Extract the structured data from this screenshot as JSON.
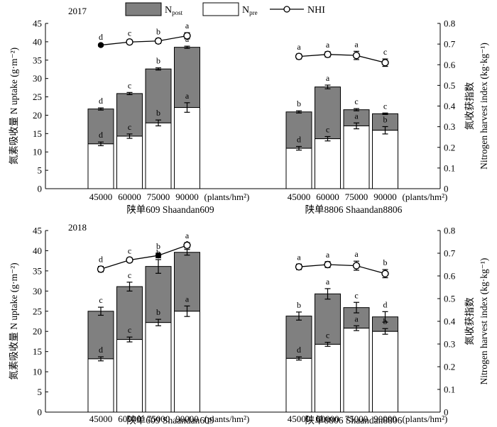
{
  "legend": {
    "npost_main": "N",
    "npost_sub": "post",
    "npre_main": "N",
    "npre_sub": "pre",
    "nhi": "NHI"
  },
  "colors": {
    "npost": "#808080",
    "npre": "#ffffff",
    "stroke": "#000000"
  },
  "chart_data": [
    {
      "type": "bar",
      "panel_label": "2017",
      "stacked": true,
      "ylabel_left_cn": "氮素吸收量",
      "ylabel_left_en": "N uptake",
      "ylabel_left_unit": "(g·m⁻²)",
      "ylabel_right_cn": "氮收获指数",
      "ylabel_right_en": "Nitrogen harvest index",
      "ylabel_right_unit": "(kg·kg⁻¹)",
      "ylim_left": [
        0,
        45
      ],
      "ylim_right": [
        0,
        0.8
      ],
      "yticks_left": [
        "0",
        "5",
        "10",
        "15",
        "20",
        "25",
        "30",
        "35",
        "40",
        "45"
      ],
      "yticks_right": [
        "0",
        "0.1",
        "0.2",
        "0.3",
        "0.4",
        "0.5",
        "0.6",
        "0.7",
        "0.8"
      ],
      "x_unit": "(plants/hm²)",
      "groups": [
        {
          "name": "陕单609 Shaandan609",
          "categories": [
            "45000",
            "60000",
            "75000",
            "90000"
          ],
          "npre": [
            12.2,
            14.3,
            17.9,
            22.1
          ],
          "npre_err": [
            0.5,
            0.6,
            0.8,
            1.3
          ],
          "npre_letters": [
            "d",
            "c",
            "b",
            "a"
          ],
          "total": [
            21.7,
            25.9,
            32.6,
            38.5
          ],
          "total_err": [
            0.3,
            0.3,
            0.3,
            0.3
          ],
          "total_letters": [
            "d",
            "c",
            "b",
            "a"
          ],
          "nhi": [
            0.695,
            0.71,
            0.715,
            0.74
          ],
          "nhi_err": [
            0.005,
            0.01,
            0.012,
            0.015
          ],
          "nhi_letters": [
            "d",
            "c",
            "b",
            "a"
          ],
          "nhi_marker": [
            "filled",
            "open",
            "open",
            "open"
          ]
        },
        {
          "name": "陕单8806 Shaandan8806",
          "categories": [
            "45000",
            "60000",
            "75000",
            "90000"
          ],
          "npre": [
            11.0,
            13.6,
            17.1,
            15.9
          ],
          "npre_err": [
            0.5,
            0.6,
            0.8,
            1.0
          ],
          "npre_letters": [
            "d",
            "c",
            "a",
            "b"
          ],
          "total": [
            20.9,
            27.7,
            21.5,
            20.4
          ],
          "total_err": [
            0.3,
            0.5,
            0.3,
            0.2
          ],
          "total_letters": [
            "b",
            "a",
            "c",
            "c"
          ],
          "nhi": [
            0.64,
            0.65,
            0.645,
            0.61
          ],
          "nhi_err": [
            0.012,
            0.013,
            0.02,
            0.018
          ],
          "nhi_letters": [
            "a",
            "a",
            "a",
            "c"
          ],
          "nhi_marker": [
            "open",
            "open",
            "open",
            "open"
          ]
        }
      ]
    },
    {
      "type": "bar",
      "panel_label": "2018",
      "stacked": true,
      "ylabel_left_cn": "氮素吸收量",
      "ylabel_left_en": "N uptake",
      "ylabel_left_unit": "(g·m⁻²)",
      "ylabel_right_cn": "氮收获指数",
      "ylabel_right_en": "Nitrogen harvest index",
      "ylabel_right_unit": "(kg·kg⁻¹)",
      "ylim_left": [
        0,
        45
      ],
      "ylim_right": [
        0,
        0.8
      ],
      "yticks_left": [
        "0",
        "5",
        "10",
        "15",
        "20",
        "25",
        "30",
        "35",
        "40",
        "45"
      ],
      "yticks_right": [
        "0",
        "0.1",
        "0.2",
        "0.3",
        "0.4",
        "0.5",
        "0.6",
        "0.7",
        "0.8"
      ],
      "x_unit": "(plants/hm²)",
      "groups": [
        {
          "name": "陕单609 Shaandan609",
          "categories": [
            "45000",
            "60000",
            "75000",
            "90000"
          ],
          "npre": [
            13.2,
            18.0,
            22.2,
            25.0
          ],
          "npre_err": [
            0.5,
            0.6,
            0.8,
            1.3
          ],
          "npre_letters": [
            "d",
            "c",
            "b",
            "a"
          ],
          "total": [
            25.0,
            31.1,
            36.1,
            39.6
          ],
          "total_err": [
            1.0,
            1.1,
            1.7,
            0.7
          ],
          "total_letters": [
            "c",
            "c",
            "b",
            "a"
          ],
          "nhi": [
            0.63,
            0.67,
            0.69,
            0.735
          ],
          "nhi_err": [
            0.012,
            0.01,
            0.01,
            0.012
          ],
          "nhi_letters": [
            "d",
            "c",
            "b",
            "a"
          ],
          "nhi_marker": [
            "open",
            "open",
            "filled",
            "open"
          ]
        },
        {
          "name": "陕单8806 Shaandan8806",
          "categories": [
            "45000",
            "60000",
            "75000",
            "90000"
          ],
          "npre": [
            13.3,
            16.8,
            20.8,
            20.0
          ],
          "npre_err": [
            0.4,
            0.5,
            0.6,
            0.7
          ],
          "npre_letters": [
            "d",
            "c",
            "a",
            "b"
          ],
          "total": [
            23.8,
            29.3,
            25.9,
            23.6
          ],
          "total_err": [
            1.0,
            1.3,
            1.3,
            1.3
          ],
          "total_letters": [
            "b",
            "a",
            "c",
            "d"
          ],
          "nhi": [
            0.64,
            0.65,
            0.645,
            0.61
          ],
          "nhi_err": [
            0.012,
            0.013,
            0.02,
            0.018
          ],
          "nhi_letters": [
            "a",
            "a",
            "a",
            "b"
          ],
          "nhi_marker": [
            "open",
            "open",
            "open",
            "open"
          ]
        }
      ]
    }
  ]
}
